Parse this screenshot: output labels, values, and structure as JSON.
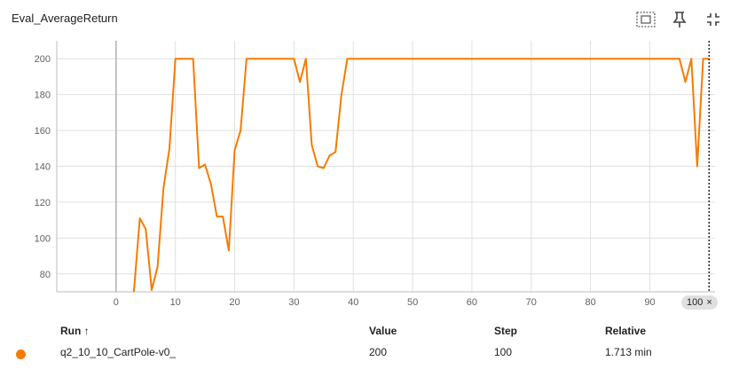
{
  "title": "Eval_AverageReturn",
  "toolbar": {
    "icons": [
      "fit-domain-icon",
      "pin-icon",
      "collapse-icon"
    ]
  },
  "chart_data": {
    "type": "line",
    "title": "Eval_AverageReturn",
    "xlabel": "",
    "ylabel": "",
    "xlim": [
      -10,
      101
    ],
    "ylim": [
      70,
      210
    ],
    "x_ticks": [
      0,
      10,
      20,
      30,
      40,
      50,
      60,
      70,
      80,
      90
    ],
    "x_tick_labels": [
      "0",
      "10",
      "20",
      "30",
      "40",
      "50",
      "60",
      "70",
      "80",
      "90"
    ],
    "y_ticks": [
      80,
      100,
      120,
      140,
      160,
      180,
      200
    ],
    "y_tick_labels": [
      "80",
      "100",
      "120",
      "140",
      "160",
      "180",
      "200"
    ],
    "grid": true,
    "cursor_step": 100,
    "color": "#f57c00",
    "series": [
      {
        "name": "q2_10_10_CartPole-v0_",
        "x": [
          3,
          4,
          5,
          6,
          7,
          8,
          9,
          10,
          11,
          12,
          13,
          14,
          15,
          16,
          17,
          18,
          19,
          20,
          21,
          22,
          23,
          24,
          25,
          26,
          27,
          28,
          29,
          30,
          31,
          32,
          33,
          34,
          35,
          36,
          37,
          38,
          39,
          40,
          45,
          50,
          55,
          60,
          65,
          70,
          75,
          80,
          85,
          90,
          94,
          95,
          96,
          97,
          98,
          99,
          100
        ],
        "values": [
          70,
          111,
          105,
          71,
          84,
          128,
          150,
          200,
          200,
          200,
          200,
          139,
          141,
          130,
          112,
          112,
          93,
          149,
          160,
          200,
          200,
          200,
          200,
          200,
          200,
          200,
          200,
          200,
          187,
          200,
          152,
          140,
          139,
          146,
          148,
          180,
          200,
          200,
          200,
          200,
          200,
          200,
          200,
          200,
          200,
          200,
          200,
          200,
          200,
          200,
          187,
          200,
          140,
          200,
          200
        ]
      }
    ]
  },
  "step_badge": {
    "label": "100",
    "close": "×"
  },
  "table": {
    "headers": {
      "run": "Run ↑",
      "value": "Value",
      "step": "Step",
      "relative": "Relative"
    },
    "rows": [
      {
        "run": "q2_10_10_CartPole-v0_",
        "value": "200",
        "step": "100",
        "relative": "1.713 min",
        "color": "#f57c00"
      }
    ]
  }
}
